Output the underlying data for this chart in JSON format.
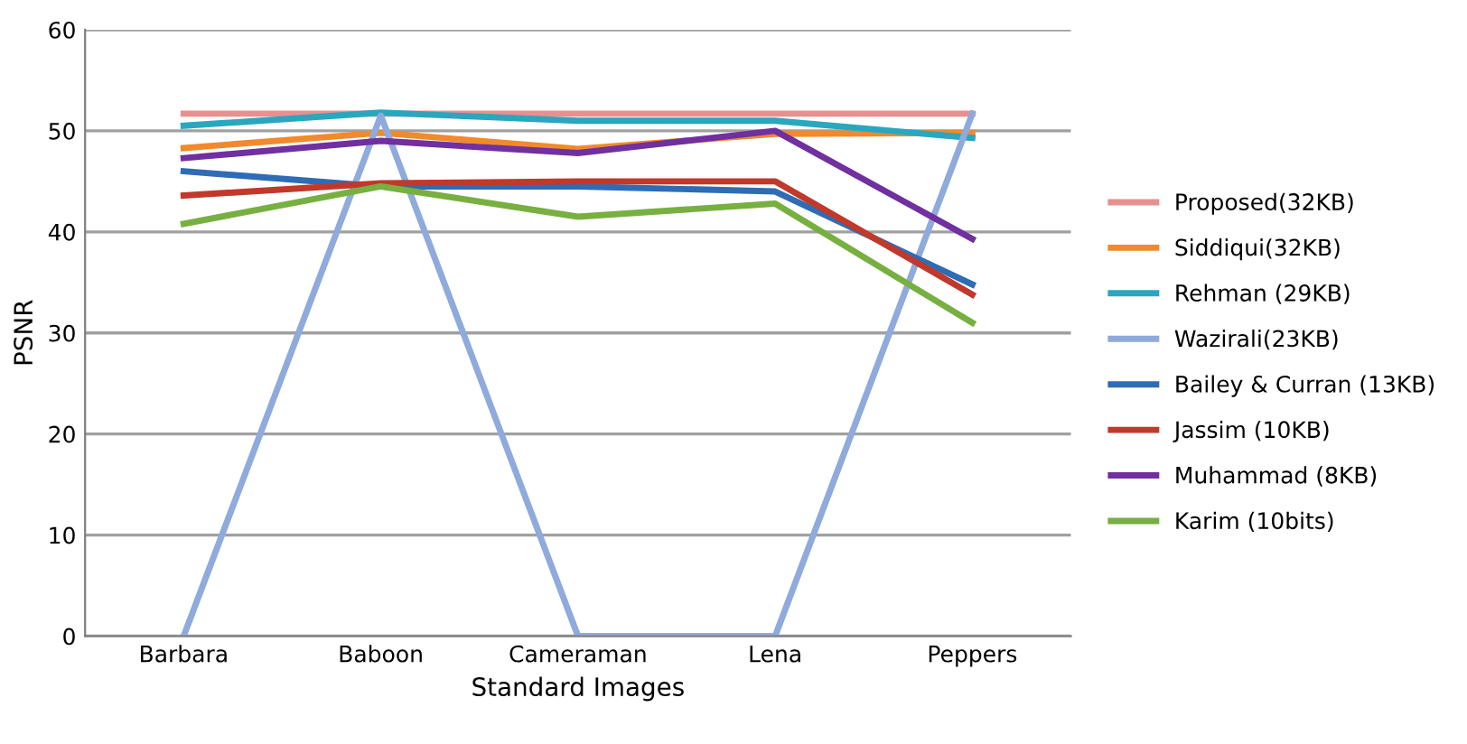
{
  "chart_data": {
    "type": "line",
    "xlabel": "Standard Images",
    "ylabel": "PSNR",
    "categories": [
      "Barbara",
      "Baboon",
      "Cameraman",
      "Lena",
      "Peppers"
    ],
    "series": [
      {
        "name": "Proposed(32KB)",
        "color": "#e8908f",
        "values": [
          51.7,
          51.7,
          51.7,
          51.7,
          51.7
        ]
      },
      {
        "name": "Siddiqui(32KB)",
        "color": "#f08a2c",
        "values": [
          48.3,
          49.8,
          48.2,
          49.7,
          49.8
        ]
      },
      {
        "name": "Rehman (29KB)",
        "color": "#2aa7be",
        "values": [
          50.5,
          51.8,
          51.0,
          51.0,
          49.3
        ]
      },
      {
        "name": "Wazirali(23KB)",
        "color": "#8faadc",
        "values": [
          0,
          51.5,
          0,
          0,
          51.7
        ]
      },
      {
        "name": "Bailey & Curran (13KB)",
        "color": "#2e6cb5",
        "values": [
          46.0,
          44.5,
          44.5,
          44.0,
          34.8
        ]
      },
      {
        "name": "Jassim (10KB)",
        "color": "#c0392b",
        "values": [
          43.6,
          44.8,
          45.0,
          45.0,
          33.8
        ]
      },
      {
        "name": "Muhammad (8KB)",
        "color": "#7030a0",
        "values": [
          47.3,
          49.0,
          47.8,
          50.0,
          39.3
        ]
      },
      {
        "name": "Karim (10bits)",
        "color": "#77b041",
        "values": [
          40.8,
          44.5,
          41.5,
          42.8,
          31.0
        ]
      }
    ],
    "ylim": [
      0,
      60
    ],
    "yticks": [
      0,
      10,
      20,
      30,
      40,
      50,
      60
    ],
    "grid": "y",
    "legend": "right",
    "marker": "none",
    "line_style": "solid"
  }
}
